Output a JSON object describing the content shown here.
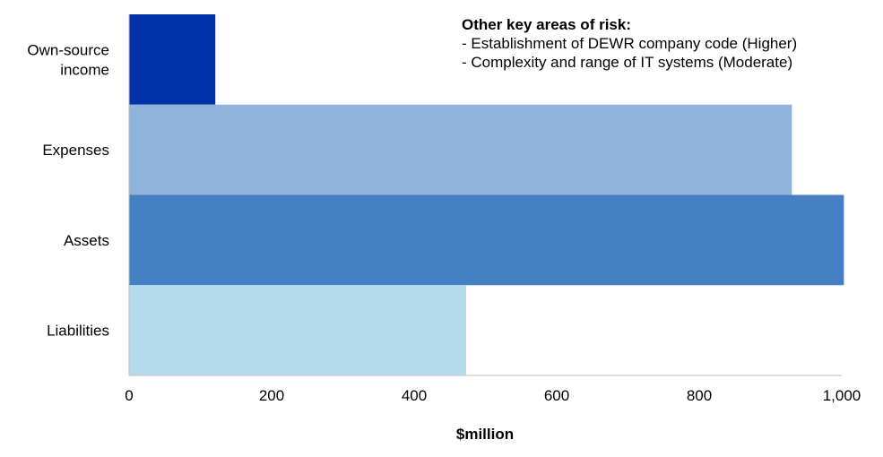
{
  "chart_data": {
    "type": "bar",
    "orientation": "horizontal",
    "categories": [
      "Own-source income",
      "Expenses",
      "Assets",
      "Liabilities"
    ],
    "category_lines": [
      [
        "Own-source",
        "income"
      ],
      [
        "Expenses"
      ],
      [
        "Assets"
      ],
      [
        "Liabilities"
      ]
    ],
    "values": [
      121,
      930,
      1003,
      473
    ],
    "colors": [
      "#0033A8",
      "#8FB3DA",
      "#4680C4",
      "#B5DAEC"
    ],
    "xlabel": "$million",
    "ylabel": "",
    "xlim": [
      0,
      1000
    ],
    "xticks": [
      0,
      200,
      400,
      600,
      800,
      1000
    ],
    "xtick_labels": [
      "0",
      "200",
      "400",
      "600",
      "800",
      "1,000"
    ],
    "grid": false
  },
  "annotation": {
    "title": "Other key areas of risk:",
    "lines": [
      "- Establishment of DEWR company code (Higher)",
      "- Complexity and range of IT systems (Moderate)"
    ]
  }
}
